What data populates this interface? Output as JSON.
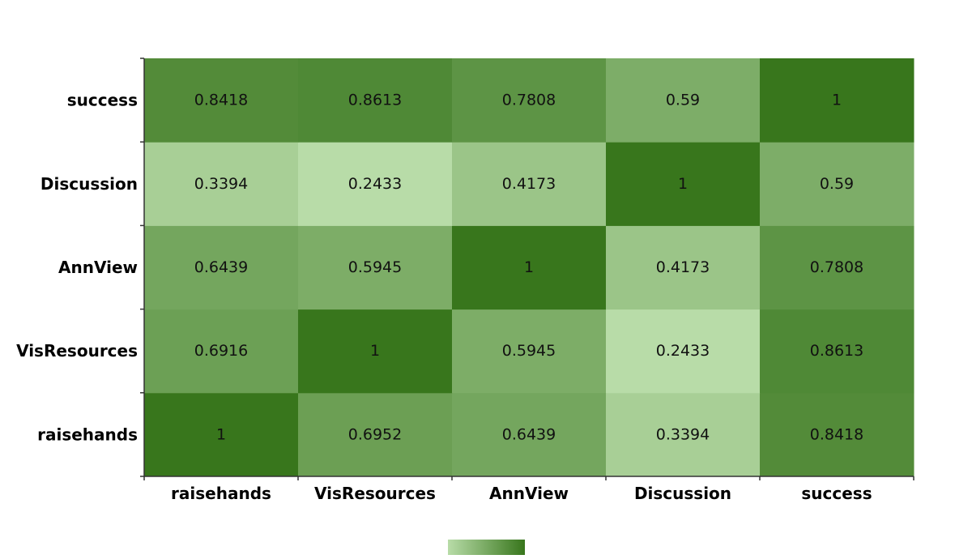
{
  "chart_data": {
    "type": "heatmap",
    "title": "",
    "xlabel": "",
    "ylabel": "",
    "x_categories": [
      "raisehands",
      "VisResources",
      "AnnView",
      "Discussion",
      "success"
    ],
    "y_categories": [
      "raisehands",
      "VisResources",
      "AnnView",
      "Discussion",
      "success"
    ],
    "values": [
      [
        1,
        0.6952,
        0.6439,
        0.3394,
        0.8418
      ],
      [
        0.6916,
        1,
        0.5945,
        0.2433,
        0.8613
      ],
      [
        0.6439,
        0.5945,
        1,
        0.4173,
        0.7808
      ],
      [
        0.3394,
        0.2433,
        0.4173,
        1,
        0.59
      ],
      [
        0.8418,
        0.8613,
        0.7808,
        0.59,
        1
      ]
    ],
    "value_labels": [
      [
        "1",
        "0.6952",
        "0.6439",
        "0.3394",
        "0.8418"
      ],
      [
        "0.6916",
        "1",
        "0.5945",
        "0.2433",
        "0.8613"
      ],
      [
        "0.6439",
        "0.5945",
        "1",
        "0.4173",
        "0.7808"
      ],
      [
        "0.3394",
        "0.2433",
        "0.4173",
        "1",
        "0.59"
      ],
      [
        "0.8418",
        "0.8613",
        "0.7808",
        "0.59",
        "1"
      ]
    ],
    "color_scale": {
      "low": "#b8dca8",
      "high": "#38761c"
    },
    "legend": "bottom-center",
    "grid": false
  }
}
